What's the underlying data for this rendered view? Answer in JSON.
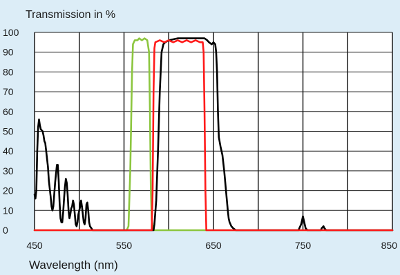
{
  "chart_data": {
    "type": "line",
    "title": "",
    "ylabel": "Transmission in %",
    "xlabel": "Wavelength (nm)",
    "xlim": [
      450,
      850
    ],
    "ylim": [
      0,
      100
    ],
    "x_ticks": [
      450,
      550,
      650,
      750,
      850
    ],
    "y_ticks": [
      0,
      10,
      20,
      30,
      40,
      50,
      60,
      70,
      80,
      90,
      100
    ],
    "grid": true,
    "vertical_gridlines": [
      450,
      500,
      550,
      600,
      650,
      700,
      750,
      800,
      850
    ],
    "horizontal_gridlines": [
      10,
      20,
      30,
      40,
      50,
      60,
      70,
      80,
      90,
      100
    ],
    "colors": {
      "background": "#dcedf7",
      "plot_background": "#ffffff",
      "grid": "#1a1a1a",
      "green": "#8cc63f",
      "red": "#ff1a1a",
      "black": "#000000"
    },
    "series": [
      {
        "color": "#8cc63f",
        "points": [
          [
            450,
            0
          ],
          [
            553,
            0
          ],
          [
            555,
            2
          ],
          [
            557,
            30
          ],
          [
            559,
            80
          ],
          [
            560,
            94
          ],
          [
            562,
            96
          ],
          [
            565,
            96
          ],
          [
            567,
            97
          ],
          [
            570,
            96
          ],
          [
            573,
            97
          ],
          [
            576,
            96
          ],
          [
            578,
            90
          ],
          [
            579,
            60
          ],
          [
            580,
            20
          ],
          [
            581,
            5
          ],
          [
            583,
            0
          ],
          [
            850,
            0
          ]
        ]
      },
      {
        "color": "#000000",
        "points": [
          [
            450,
            18
          ],
          [
            451,
            16
          ],
          [
            452,
            20
          ],
          [
            453,
            40
          ],
          [
            454,
            52
          ],
          [
            455,
            56
          ],
          [
            456,
            53
          ],
          [
            457,
            51
          ],
          [
            459,
            50
          ],
          [
            460,
            48
          ],
          [
            461,
            45
          ],
          [
            462,
            44
          ],
          [
            463,
            40
          ],
          [
            465,
            32
          ],
          [
            466,
            25
          ],
          [
            468,
            17
          ],
          [
            469,
            12
          ],
          [
            470,
            10
          ],
          [
            471,
            12
          ],
          [
            472,
            18
          ],
          [
            473,
            24
          ],
          [
            475,
            33
          ],
          [
            476,
            33
          ],
          [
            477,
            25
          ],
          [
            478,
            14
          ],
          [
            479,
            6
          ],
          [
            480,
            4
          ],
          [
            481,
            4
          ],
          [
            482,
            9
          ],
          [
            483,
            16
          ],
          [
            484,
            22
          ],
          [
            485,
            26
          ],
          [
            486,
            24
          ],
          [
            487,
            18
          ],
          [
            488,
            10
          ],
          [
            489,
            6
          ],
          [
            490,
            8
          ],
          [
            491,
            11
          ],
          [
            492,
            12
          ],
          [
            493,
            15
          ],
          [
            494,
            13
          ],
          [
            495,
            8
          ],
          [
            496,
            3
          ],
          [
            497,
            2
          ],
          [
            498,
            4
          ],
          [
            499,
            8
          ],
          [
            501,
            12
          ],
          [
            502,
            15
          ],
          [
            503,
            12
          ],
          [
            504,
            8
          ],
          [
            505,
            4
          ],
          [
            506,
            3
          ],
          [
            507,
            6
          ],
          [
            508,
            13
          ],
          [
            509,
            14
          ],
          [
            510,
            10
          ],
          [
            511,
            4
          ],
          [
            512,
            2
          ],
          [
            515,
            0
          ],
          [
            580,
            0
          ],
          [
            583,
            0
          ],
          [
            584,
            3
          ],
          [
            586,
            15
          ],
          [
            588,
            40
          ],
          [
            590,
            70
          ],
          [
            592,
            90
          ],
          [
            594,
            94
          ],
          [
            596,
            95
          ],
          [
            600,
            96
          ],
          [
            610,
            97
          ],
          [
            620,
            97
          ],
          [
            630,
            97
          ],
          [
            640,
            97
          ],
          [
            643,
            96
          ],
          [
            645,
            95
          ],
          [
            648,
            94
          ],
          [
            650,
            95
          ],
          [
            652,
            94
          ],
          [
            653,
            90
          ],
          [
            654,
            80
          ],
          [
            655,
            60
          ],
          [
            656,
            47
          ],
          [
            658,
            42
          ],
          [
            660,
            38
          ],
          [
            662,
            30
          ],
          [
            664,
            20
          ],
          [
            665,
            15
          ],
          [
            666,
            10
          ],
          [
            667,
            6
          ],
          [
            668,
            4
          ],
          [
            670,
            2
          ],
          [
            672,
            1
          ],
          [
            675,
            0
          ],
          [
            745,
            0
          ],
          [
            746,
            1
          ],
          [
            748,
            3
          ],
          [
            749,
            5
          ],
          [
            750,
            7
          ],
          [
            751,
            5
          ],
          [
            752,
            3
          ],
          [
            753,
            1
          ],
          [
            755,
            0
          ],
          [
            770,
            0
          ],
          [
            771,
            1
          ],
          [
            773,
            2
          ],
          [
            774,
            1
          ],
          [
            776,
            0
          ],
          [
            780,
            0
          ],
          [
            790,
            0
          ],
          [
            800,
            0
          ],
          [
            850,
            0
          ]
        ]
      },
      {
        "color": "#ff1a1a",
        "points": [
          [
            450,
            0
          ],
          [
            581,
            0
          ],
          [
            582,
            20
          ],
          [
            583,
            70
          ],
          [
            584,
            92
          ],
          [
            585,
            95
          ],
          [
            590,
            96
          ],
          [
            595,
            95
          ],
          [
            600,
            96
          ],
          [
            605,
            95
          ],
          [
            610,
            96
          ],
          [
            615,
            95
          ],
          [
            620,
            96
          ],
          [
            625,
            95
          ],
          [
            630,
            96
          ],
          [
            635,
            95
          ],
          [
            638,
            95
          ],
          [
            639,
            90
          ],
          [
            640,
            60
          ],
          [
            641,
            20
          ],
          [
            642,
            0
          ],
          [
            850,
            0
          ]
        ]
      }
    ]
  }
}
